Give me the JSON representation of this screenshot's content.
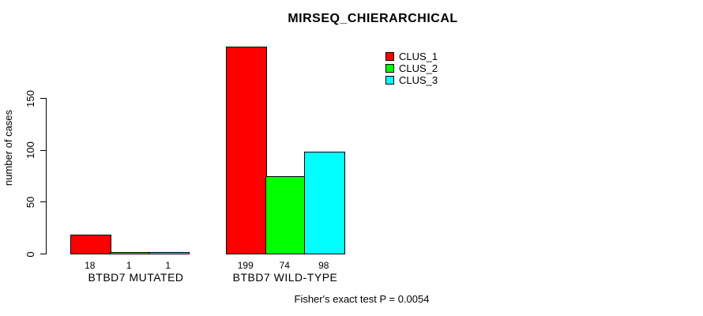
{
  "title": "MIRSEQ_CHIERARCHICAL",
  "footnote": "Fisher's exact test P = 0.0054",
  "chart_data": {
    "type": "bar",
    "title": "MIRSEQ_CHIERARCHICAL",
    "xlabel": "",
    "ylabel": "number of cases",
    "ylim": [
      0,
      200
    ],
    "yticks": [
      0,
      50,
      100,
      150
    ],
    "grid": false,
    "legend_position": "top-right",
    "categories": [
      "BTBD7 MUTATED",
      "BTBD7 WILD-TYPE"
    ],
    "series": [
      {
        "name": "CLUS_1",
        "color": "#ff0000",
        "values": [
          18,
          199
        ]
      },
      {
        "name": "CLUS_2",
        "color": "#00ff00",
        "values": [
          1,
          74
        ]
      },
      {
        "name": "CLUS_3",
        "color": "#00ffff",
        "values": [
          1,
          98
        ]
      }
    ],
    "bar_value_labels": [
      [
        18,
        1,
        1
      ],
      [
        199,
        74,
        98
      ]
    ],
    "annotation": "Fisher's exact test P = 0.0054",
    "colors": {
      "axis": "#000000",
      "background": "#ffffff",
      "bar_border": "#000000"
    }
  }
}
